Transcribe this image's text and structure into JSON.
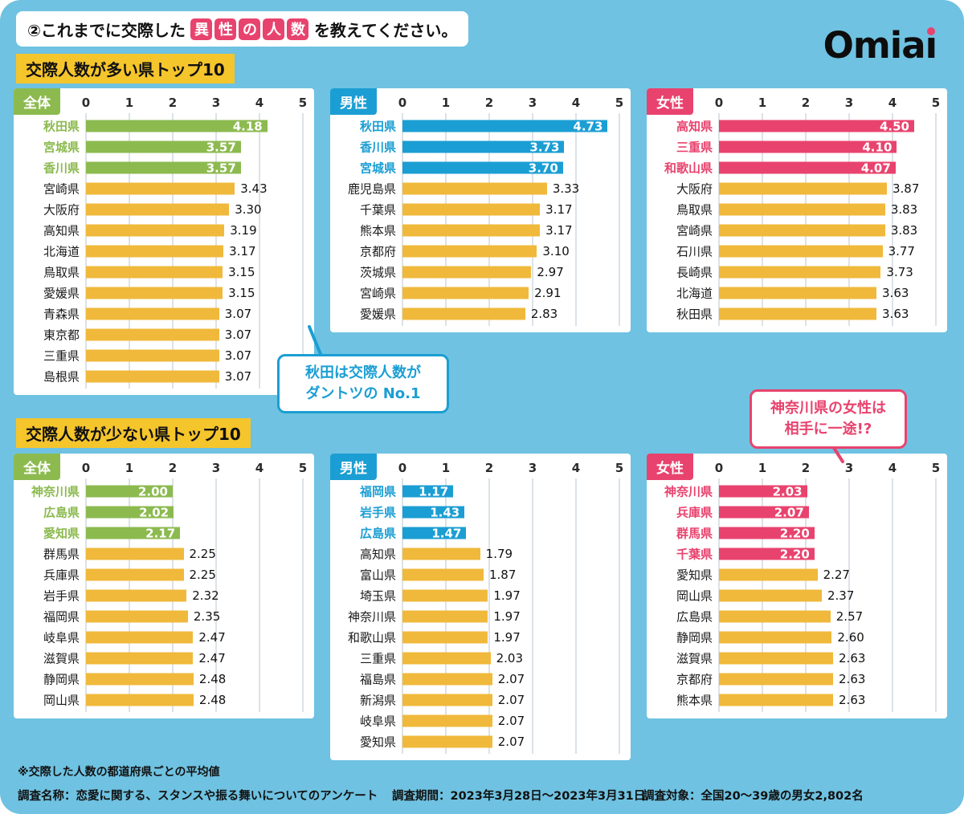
{
  "colors": {
    "background": "#6FC2E1",
    "green": "#8CBA4F",
    "blue": "#1B9ED3",
    "pink": "#E8436E",
    "bar_yellow": "#F0B93B",
    "title_yellow": "#F5C52C",
    "grid": "#DCE2E7",
    "text_dark": "#111111"
  },
  "header": {
    "question_prefix": "②これまでに交際した",
    "highlight_chars": [
      "異",
      "性",
      "の",
      "人",
      "数"
    ],
    "question_suffix": "を教えてください。",
    "logo_prefix": "Omia",
    "logo_i_body": "ı"
  },
  "sections": [
    {
      "title": "交際人数が多い県トップ10"
    },
    {
      "title": "交際人数が少ない県トップ10"
    }
  ],
  "callouts": [
    {
      "line1": "秋田は交際人数が",
      "line2": "ダントツの No.1",
      "color": "blue"
    },
    {
      "line1": "神奈川県の女性は",
      "line2": "相手に一途!?",
      "color": "pink"
    }
  ],
  "footnote": "※交際した人数の都道府県ごとの平均値",
  "footer": [
    "調査名称：恋愛に関する、スタンスや振る舞いについてのアンケート",
    "調査期間：2023年3月28日～2023年3月31日",
    "調査対象：全国20～39歳の男女2,802名"
  ],
  "chart_data": [
    {
      "type": "bar",
      "orientation": "horizontal",
      "key": "most-overall",
      "row": 0,
      "section": "交際人数が多い県トップ10",
      "group": "全体",
      "color_scheme": "green",
      "xlim": [
        0,
        5
      ],
      "x_ticks": [
        0,
        1,
        2,
        3,
        4,
        5
      ],
      "highlight_count": 3,
      "categories": [
        "秋田県",
        "宮城県",
        "香川県",
        "宮崎県",
        "大阪府",
        "高知県",
        "北海道",
        "鳥取県",
        "愛媛県",
        "青森県",
        "東京都",
        "三重県",
        "島根県"
      ],
      "values": [
        4.18,
        3.57,
        3.57,
        3.43,
        3.3,
        3.19,
        3.17,
        3.15,
        3.15,
        3.07,
        3.07,
        3.07,
        3.07
      ]
    },
    {
      "type": "bar",
      "orientation": "horizontal",
      "key": "most-male",
      "row": 0,
      "section": "交際人数が多い県トップ10",
      "group": "男性",
      "color_scheme": "blue",
      "xlim": [
        0,
        5
      ],
      "x_ticks": [
        0,
        1,
        2,
        3,
        4,
        5
      ],
      "highlight_count": 3,
      "categories": [
        "秋田県",
        "香川県",
        "宮城県",
        "鹿児島県",
        "千葉県",
        "熊本県",
        "京都府",
        "茨城県",
        "宮崎県",
        "愛媛県"
      ],
      "values": [
        4.73,
        3.73,
        3.7,
        3.33,
        3.17,
        3.17,
        3.1,
        2.97,
        2.91,
        2.83
      ]
    },
    {
      "type": "bar",
      "orientation": "horizontal",
      "key": "most-female",
      "row": 0,
      "section": "交際人数が多い県トップ10",
      "group": "女性",
      "color_scheme": "pink",
      "xlim": [
        0,
        5
      ],
      "x_ticks": [
        0,
        1,
        2,
        3,
        4,
        5
      ],
      "highlight_count": 3,
      "categories": [
        "高知県",
        "三重県",
        "和歌山県",
        "大阪府",
        "鳥取県",
        "宮崎県",
        "石川県",
        "長崎県",
        "北海道",
        "秋田県"
      ],
      "values": [
        4.5,
        4.1,
        4.07,
        3.87,
        3.83,
        3.83,
        3.77,
        3.73,
        3.63,
        3.63
      ]
    },
    {
      "type": "bar",
      "orientation": "horizontal",
      "key": "least-overall",
      "row": 1,
      "section": "交際人数が少ない県トップ10",
      "group": "全体",
      "color_scheme": "green",
      "xlim": [
        0,
        5
      ],
      "x_ticks": [
        0,
        1,
        2,
        3,
        4,
        5
      ],
      "highlight_count": 3,
      "categories": [
        "神奈川県",
        "広島県",
        "愛知県",
        "群馬県",
        "兵庫県",
        "岩手県",
        "福岡県",
        "岐阜県",
        "滋賀県",
        "静岡県",
        "岡山県"
      ],
      "values": [
        2.0,
        2.02,
        2.17,
        2.25,
        2.25,
        2.32,
        2.35,
        2.47,
        2.47,
        2.48,
        2.48
      ]
    },
    {
      "type": "bar",
      "orientation": "horizontal",
      "key": "least-male",
      "row": 1,
      "section": "交際人数が少ない県トップ10",
      "group": "男性",
      "color_scheme": "blue",
      "xlim": [
        0,
        5
      ],
      "x_ticks": [
        0,
        1,
        2,
        3,
        4,
        5
      ],
      "highlight_count": 3,
      "categories": [
        "福岡県",
        "岩手県",
        "広島県",
        "高知県",
        "富山県",
        "埼玉県",
        "神奈川県",
        "和歌山県",
        "三重県",
        "福島県",
        "新潟県",
        "岐阜県",
        "愛知県"
      ],
      "values": [
        1.17,
        1.43,
        1.47,
        1.79,
        1.87,
        1.97,
        1.97,
        1.97,
        2.03,
        2.07,
        2.07,
        2.07,
        2.07
      ]
    },
    {
      "type": "bar",
      "orientation": "horizontal",
      "key": "least-female",
      "row": 1,
      "section": "交際人数が少ない県トップ10",
      "group": "女性",
      "color_scheme": "pink",
      "xlim": [
        0,
        5
      ],
      "x_ticks": [
        0,
        1,
        2,
        3,
        4,
        5
      ],
      "highlight_count": 4,
      "categories": [
        "神奈川県",
        "兵庫県",
        "群馬県",
        "千葉県",
        "愛知県",
        "岡山県",
        "広島県",
        "静岡県",
        "滋賀県",
        "京都府",
        "熊本県"
      ],
      "values": [
        2.03,
        2.07,
        2.2,
        2.2,
        2.27,
        2.37,
        2.57,
        2.6,
        2.63,
        2.63,
        2.63
      ]
    }
  ]
}
